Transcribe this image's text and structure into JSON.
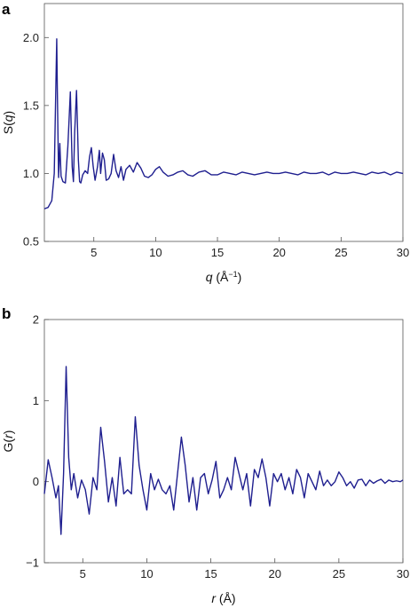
{
  "panels": [
    {
      "letter": "a",
      "ylabel_prefix": "S(",
      "ylabel_var": "q",
      "ylabel_suffix": ")",
      "xlabel_var": "q",
      "xlabel_unit": " (Å",
      "xlabel_exp": "−1",
      "xlabel_close": ")"
    },
    {
      "letter": "b",
      "ylabel_prefix": "G(",
      "ylabel_var": "r",
      "ylabel_suffix": ")",
      "xlabel_var": "r",
      "xlabel_unit": " (Å)"
    }
  ],
  "chart_data": [
    {
      "type": "line",
      "xlim": [
        1,
        30
      ],
      "ylim": [
        0.5,
        2.25
      ],
      "xticks": [
        5,
        10,
        15,
        20,
        25,
        30
      ],
      "yticks": [
        0.5,
        1.0,
        1.5,
        2.0
      ],
      "ytick_labels": [
        "0.5",
        "1.0",
        "1.5",
        "2.0"
      ],
      "xtick_labels": [
        "5",
        "10",
        "15",
        "20",
        "25",
        "30"
      ],
      "grid": false,
      "color": "#1f1f8f",
      "series": [
        {
          "x": [
            1.0,
            1.3,
            1.6,
            1.8,
            1.9,
            2.0,
            2.05,
            2.15,
            2.25,
            2.35,
            2.5,
            2.7,
            2.9,
            3.1,
            3.25,
            3.35,
            3.45,
            3.6,
            3.75,
            3.85,
            3.95,
            4.1,
            4.3,
            4.5,
            4.65,
            4.8,
            4.95,
            5.1,
            5.3,
            5.45,
            5.55,
            5.7,
            5.85,
            6.0,
            6.2,
            6.4,
            6.6,
            6.8,
            7.0,
            7.2,
            7.4,
            7.6,
            7.9,
            8.2,
            8.5,
            8.8,
            9.1,
            9.4,
            9.7,
            10.0,
            10.3,
            10.6,
            11.0,
            11.4,
            11.8,
            12.2,
            12.6,
            13.0,
            13.5,
            14.0,
            14.5,
            15.0,
            15.5,
            16.0,
            16.5,
            17.0,
            17.5,
            18.0,
            18.5,
            19.0,
            19.5,
            20.0,
            20.5,
            21.0,
            21.5,
            22.0,
            22.5,
            23.0,
            23.5,
            24.0,
            24.5,
            25.0,
            25.5,
            26.0,
            26.5,
            27.0,
            27.5,
            28.0,
            28.5,
            29.0,
            29.5,
            30.0
          ],
          "y": [
            0.74,
            0.75,
            0.8,
            1.0,
            1.5,
            1.99,
            1.6,
            0.97,
            1.22,
            0.98,
            0.94,
            0.93,
            1.2,
            1.6,
            1.05,
            0.94,
            1.3,
            1.61,
            1.1,
            0.94,
            0.93,
            0.99,
            1.02,
            1.0,
            1.12,
            1.19,
            1.05,
            0.95,
            1.05,
            1.17,
            1.0,
            1.15,
            1.1,
            0.95,
            0.96,
            1.0,
            1.14,
            1.02,
            0.97,
            1.05,
            0.95,
            1.03,
            1.06,
            1.01,
            1.08,
            1.04,
            0.98,
            0.97,
            0.99,
            1.03,
            1.05,
            1.01,
            0.98,
            0.99,
            1.01,
            1.02,
            0.99,
            0.98,
            1.01,
            1.02,
            0.99,
            0.99,
            1.01,
            1.0,
            0.99,
            1.01,
            1.0,
            0.99,
            1.0,
            1.01,
            1.0,
            1.0,
            1.01,
            1.0,
            0.99,
            1.01,
            1.0,
            1.0,
            1.01,
            0.99,
            1.01,
            1.0,
            1.0,
            1.01,
            1.0,
            0.99,
            1.01,
            1.0,
            1.01,
            0.99,
            1.01,
            1.0
          ]
        }
      ]
    },
    {
      "type": "line",
      "xlim": [
        2,
        30
      ],
      "ylim": [
        -1,
        2
      ],
      "xticks": [
        5,
        10,
        15,
        20,
        25,
        30
      ],
      "yticks": [
        -1,
        0,
        1,
        2
      ],
      "ytick_labels": [
        "−1",
        "0",
        "1",
        "2"
      ],
      "xtick_labels": [
        "5",
        "10",
        "15",
        "20",
        "25",
        "30"
      ],
      "grid": false,
      "color": "#1f1f8f",
      "series": [
        {
          "x": [
            2.0,
            2.3,
            2.6,
            2.9,
            3.1,
            3.3,
            3.5,
            3.7,
            3.9,
            4.1,
            4.3,
            4.6,
            4.9,
            5.2,
            5.5,
            5.8,
            6.1,
            6.4,
            6.7,
            7.0,
            7.3,
            7.6,
            7.9,
            8.2,
            8.5,
            8.8,
            9.1,
            9.4,
            9.7,
            10.0,
            10.3,
            10.6,
            10.9,
            11.2,
            11.5,
            11.8,
            12.1,
            12.4,
            12.7,
            13.0,
            13.3,
            13.6,
            13.9,
            14.2,
            14.5,
            14.8,
            15.1,
            15.4,
            15.7,
            16.0,
            16.3,
            16.6,
            16.9,
            17.2,
            17.5,
            17.8,
            18.1,
            18.4,
            18.7,
            19.0,
            19.3,
            19.6,
            19.9,
            20.2,
            20.5,
            20.8,
            21.1,
            21.4,
            21.7,
            22.0,
            22.3,
            22.6,
            22.9,
            23.2,
            23.5,
            23.8,
            24.1,
            24.4,
            24.7,
            25.0,
            25.3,
            25.6,
            25.9,
            26.2,
            26.5,
            26.8,
            27.1,
            27.4,
            27.7,
            28.0,
            28.3,
            28.6,
            28.9,
            29.2,
            29.5,
            29.8,
            30.0
          ],
          "y": [
            -0.15,
            0.27,
            0.05,
            -0.2,
            -0.05,
            -0.65,
            0.1,
            1.42,
            0.3,
            -0.1,
            0.1,
            -0.2,
            0.02,
            -0.1,
            -0.4,
            0.05,
            -0.1,
            0.67,
            0.25,
            -0.25,
            0.05,
            -0.3,
            0.3,
            -0.15,
            -0.1,
            -0.15,
            0.8,
            0.2,
            -0.1,
            -0.35,
            0.1,
            -0.1,
            0.03,
            -0.1,
            -0.15,
            -0.05,
            -0.35,
            0.1,
            0.55,
            0.2,
            -0.25,
            0.05,
            -0.35,
            0.05,
            0.1,
            -0.15,
            0.02,
            0.25,
            -0.2,
            -0.1,
            0.05,
            -0.1,
            0.3,
            0.1,
            -0.1,
            0.1,
            -0.3,
            0.15,
            0.05,
            0.28,
            0.05,
            -0.3,
            0.1,
            0.0,
            0.1,
            -0.1,
            0.05,
            -0.15,
            0.15,
            0.05,
            -0.2,
            0.1,
            0.0,
            -0.1,
            0.13,
            -0.05,
            0.02,
            -0.05,
            0.0,
            0.12,
            0.05,
            -0.05,
            0.0,
            -0.08,
            0.02,
            0.03,
            -0.05,
            0.02,
            -0.02,
            0.01,
            0.03,
            -0.02,
            0.02,
            0.0,
            0.01,
            0.0,
            0.02
          ]
        }
      ]
    }
  ]
}
